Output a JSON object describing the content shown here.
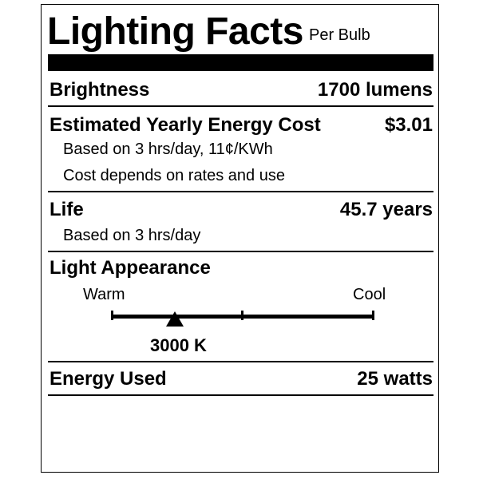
{
  "title": "Lighting Facts",
  "subtitle": "Per Bulb",
  "brightness": {
    "label": "Brightness",
    "value": "1700 lumens"
  },
  "cost": {
    "label": "Estimated Yearly Energy Cost",
    "value": "$3.01",
    "note1": "Based on 3 hrs/day, 11¢/KWh",
    "note2": "Cost depends on rates and use"
  },
  "life": {
    "label": "Life",
    "value": "45.7 years",
    "note": "Based on 3 hrs/day"
  },
  "appearance": {
    "label": "Light Appearance",
    "warm": "Warm",
    "cool": "Cool",
    "value": "3000 K",
    "position_fraction": 0.24
  },
  "energy": {
    "label": "Energy Used",
    "value": "25 watts"
  }
}
